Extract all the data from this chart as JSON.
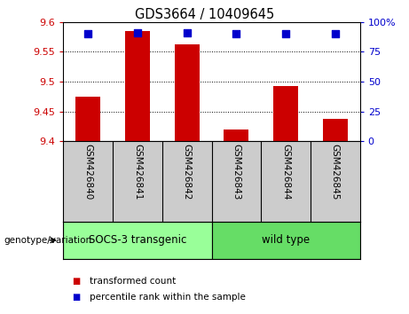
{
  "title": "GDS3664 / 10409645",
  "samples": [
    "GSM426840",
    "GSM426841",
    "GSM426842",
    "GSM426843",
    "GSM426844",
    "GSM426845"
  ],
  "transformed_counts": [
    9.475,
    9.585,
    9.562,
    9.42,
    9.493,
    9.438
  ],
  "percentile_ranks": [
    90,
    91,
    91,
    90,
    90,
    90
  ],
  "y_min": 9.4,
  "y_max": 9.6,
  "y_ticks": [
    9.4,
    9.45,
    9.5,
    9.55,
    9.6
  ],
  "y2_ticks": [
    0,
    25,
    50,
    75,
    100
  ],
  "bar_color": "#cc0000",
  "dot_color": "#0000cc",
  "bar_width": 0.5,
  "dot_size": 40,
  "groups": [
    {
      "label": "SOCS-3 transgenic",
      "indices": [
        0,
        1,
        2
      ]
    },
    {
      "label": "wild type",
      "indices": [
        3,
        4,
        5
      ]
    }
  ],
  "group_label": "genotype/variation",
  "legend_items": [
    {
      "color": "#cc0000",
      "label": "transformed count"
    },
    {
      "color": "#0000cc",
      "label": "percentile rank within the sample"
    }
  ],
  "left_tick_color": "#cc0000",
  "right_tick_color": "#0000cc",
  "label_area_color": "#cccccc",
  "group_area_color_1": "#99ff99",
  "group_area_color_2": "#66dd66",
  "fig_width": 4.61,
  "fig_height": 3.54,
  "dpi": 100
}
